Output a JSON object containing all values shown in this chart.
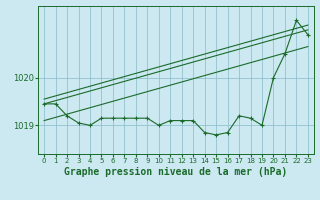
{
  "bg_color": "#cce8f0",
  "grid_color": "#88bbcc",
  "line_color": "#1a6b2a",
  "xlabel": "Graphe pression niveau de la mer (hPa)",
  "xlabel_fontsize": 7,
  "tick_fontsize": 5,
  "ylim": [
    1018.4,
    1021.5
  ],
  "xlim": [
    -0.5,
    23.5
  ],
  "yticks": [
    1019,
    1020
  ],
  "xticks": [
    0,
    1,
    2,
    3,
    4,
    5,
    6,
    7,
    8,
    9,
    10,
    11,
    12,
    13,
    14,
    15,
    16,
    17,
    18,
    19,
    20,
    21,
    22,
    23
  ],
  "pressure_data": [
    1019.45,
    1019.45,
    1019.2,
    1019.05,
    1019.0,
    1019.15,
    1019.15,
    1019.15,
    1019.15,
    1019.15,
    1019.0,
    1019.1,
    1019.1,
    1019.1,
    1018.85,
    1018.8,
    1018.85,
    1019.2,
    1019.15,
    1019.0,
    1020.0,
    1020.5,
    1021.2,
    1020.9
  ],
  "trend_start_x": 0,
  "trend_end_x": 23,
  "trend_mid_y0": 1019.45,
  "trend_mid_y1": 1021.0,
  "trend_upper_y0": 1019.55,
  "trend_upper_y1": 1021.1,
  "trend_lower_y0": 1019.1,
  "trend_lower_y1": 1020.65
}
